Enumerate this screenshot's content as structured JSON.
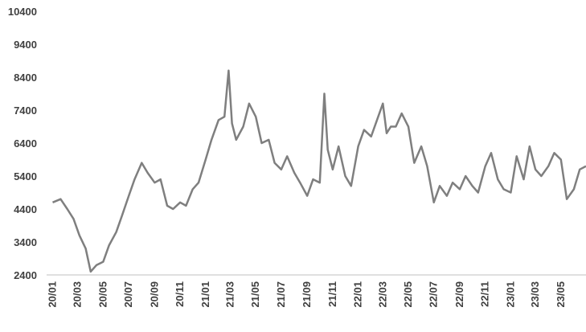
{
  "chart_data": {
    "type": "line",
    "title": "",
    "xlabel": "",
    "ylabel": "",
    "ylim": [
      2400,
      10400
    ],
    "y_ticks": [
      "10400",
      "9400",
      "8400",
      "7400",
      "6400",
      "5400",
      "4400",
      "3400",
      "2400"
    ],
    "x_ticks": [
      "20/01",
      "20/03",
      "20/05",
      "20/07",
      "20/09",
      "20/11",
      "21/01",
      "21/03",
      "21/05",
      "21/07",
      "21/09",
      "21/11",
      "22/01",
      "22/03",
      "22/05",
      "22/07",
      "22/09",
      "22/11",
      "23/01",
      "23/03",
      "23/05"
    ],
    "grid": false,
    "legend": "none",
    "line_color": "#7f7f7f",
    "series": [
      {
        "x": [
          "2020-01-01",
          "2020-01-20",
          "2020-02-05",
          "2020-02-20",
          "2020-03-05",
          "2020-03-20",
          "2020-04-01",
          "2020-04-15",
          "2020-05-01",
          "2020-05-15",
          "2020-06-01",
          "2020-06-15",
          "2020-07-01",
          "2020-07-15",
          "2020-08-01",
          "2020-08-15",
          "2020-09-01",
          "2020-09-15",
          "2020-10-01",
          "2020-10-15",
          "2020-11-01",
          "2020-11-15",
          "2020-12-01",
          "2020-12-15",
          "2021-01-01",
          "2021-01-15",
          "2021-02-01",
          "2021-02-15",
          "2021-02-25",
          "2021-03-05",
          "2021-03-15",
          "2021-04-01",
          "2021-04-15",
          "2021-05-01",
          "2021-05-15",
          "2021-06-01",
          "2021-06-15",
          "2021-07-01",
          "2021-07-15",
          "2021-08-01",
          "2021-08-15",
          "2021-09-01",
          "2021-09-15",
          "2021-10-01",
          "2021-10-12",
          "2021-10-20",
          "2021-11-01",
          "2021-11-15",
          "2021-12-01",
          "2021-12-15",
          "2022-01-01",
          "2022-01-15",
          "2022-02-01",
          "2022-02-15",
          "2022-03-01",
          "2022-03-10",
          "2022-03-20",
          "2022-04-01",
          "2022-04-15",
          "2022-05-01",
          "2022-05-15",
          "2022-06-01",
          "2022-06-15",
          "2022-07-01",
          "2022-07-15",
          "2022-08-01",
          "2022-08-15",
          "2022-09-01",
          "2022-09-15",
          "2022-10-01",
          "2022-10-15",
          "2022-11-01",
          "2022-11-15",
          "2022-12-01",
          "2022-12-15",
          "2023-01-01",
          "2023-01-15",
          "2023-02-01",
          "2023-02-15",
          "2023-03-01",
          "2023-03-15",
          "2023-04-01",
          "2023-04-15",
          "2023-05-01",
          "2023-05-15",
          "2023-06-01",
          "2023-06-15",
          "2023-06-30"
        ],
        "values": [
          4600,
          4700,
          4400,
          4100,
          3600,
          3200,
          2500,
          2700,
          2800,
          3300,
          3700,
          4200,
          4800,
          5300,
          5800,
          5500,
          5200,
          5300,
          4500,
          4400,
          4600,
          4500,
          5000,
          5200,
          5900,
          6500,
          7100,
          7200,
          8600,
          7000,
          6500,
          6900,
          7600,
          7200,
          6400,
          6500,
          5800,
          5600,
          6000,
          5500,
          5200,
          4800,
          5300,
          5200,
          7900,
          6200,
          5600,
          6300,
          5400,
          5100,
          6300,
          6800,
          6600,
          7100,
          7600,
          6700,
          6900,
          6900,
          7300,
          6900,
          5800,
          6300,
          5700,
          4600,
          5100,
          4800,
          5200,
          5000,
          5400,
          5100,
          4900,
          5700,
          6100,
          5300,
          5000,
          4900,
          6000,
          5300,
          6300,
          5600,
          5400,
          5700,
          6100,
          5900,
          4700,
          5000,
          5600,
          5700
        ]
      }
    ]
  }
}
